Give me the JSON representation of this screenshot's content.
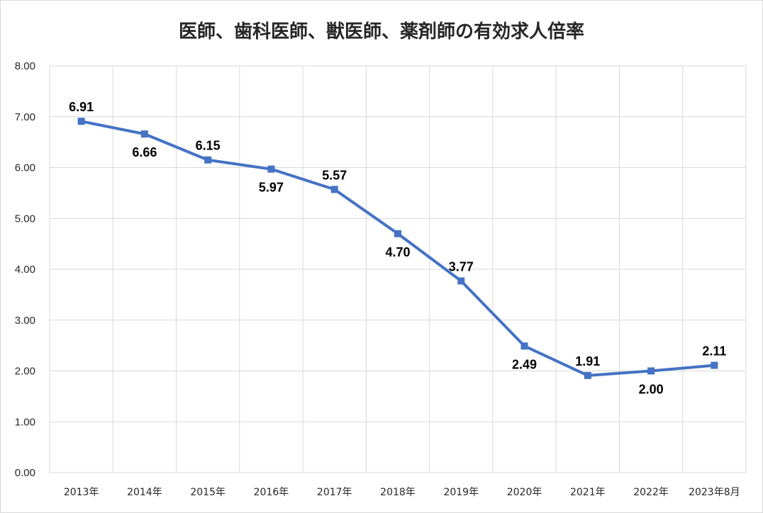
{
  "chart_data": {
    "type": "line",
    "title": "医師、歯科医師、獣医師、薬剤師の有効求人倍率",
    "categories": [
      "2013年",
      "2014年",
      "2015年",
      "2016年",
      "2017年",
      "2018年",
      "2019年",
      "2020年",
      "2021年",
      "2022年",
      "2023年8月"
    ],
    "series": [
      {
        "values": [
          6.91,
          6.66,
          6.15,
          5.97,
          5.57,
          4.7,
          3.77,
          2.49,
          1.91,
          2.0,
          2.11
        ],
        "labels": [
          "6.91",
          "6.66",
          "6.15",
          "5.97",
          "5.57",
          "4.70",
          "3.77",
          "2.49",
          "1.91",
          "2.00",
          "2.11"
        ],
        "label_positions": [
          "above",
          "below",
          "above",
          "below",
          "above",
          "below",
          "above",
          "below",
          "above",
          "below",
          "above"
        ],
        "color": "#4472c4"
      }
    ],
    "ylim": [
      0,
      8
    ],
    "yticks": [
      "0.00",
      "1.00",
      "2.00",
      "3.00",
      "4.00",
      "5.00",
      "6.00",
      "7.00",
      "8.00"
    ],
    "grid": true,
    "legend": "none"
  }
}
